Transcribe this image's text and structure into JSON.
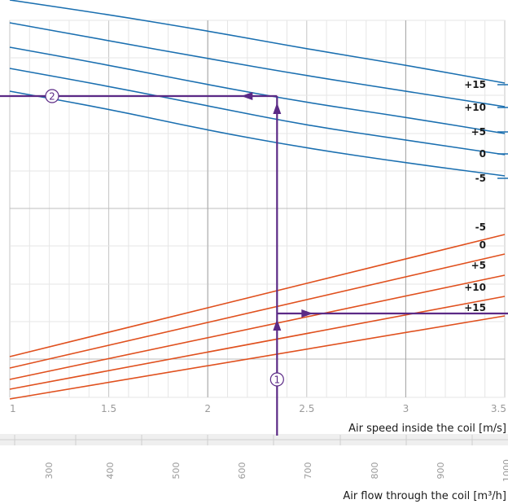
{
  "chart_data": {
    "type": "line",
    "x_axis": {
      "label": "Air speed inside the coil [m/s]",
      "ticks": [
        "1",
        "1.5",
        "2",
        "2.5",
        "3",
        "3.5"
      ],
      "range": [
        1,
        3.5
      ]
    },
    "secondary_x_axis": {
      "label": "Air flow through the coil [m³/h]",
      "ticks": [
        "300",
        "400",
        "500",
        "600",
        "700",
        "800",
        "900",
        "1000"
      ]
    },
    "upper_group": {
      "color": "#1a6fb0",
      "series": [
        {
          "name": "+15",
          "points": [
            [
              1.0,
              0.0
            ],
            [
              1.5,
              18.0
            ],
            [
              2.0,
              38.0
            ],
            [
              2.5,
              60.0
            ],
            [
              3.0,
              80.0
            ],
            [
              3.5,
              102.0
            ]
          ]
        },
        {
          "name": "+10",
          "points": [
            [
              1.0,
              28.0
            ],
            [
              1.5,
              50.0
            ],
            [
              2.0,
              72.0
            ],
            [
              2.5,
              93.0
            ],
            [
              3.0,
              112.0
            ],
            [
              3.5,
              131.0
            ]
          ]
        },
        {
          "name": "+5",
          "points": [
            [
              1.0,
              58.0
            ],
            [
              1.5,
              80.0
            ],
            [
              2.0,
              104.0
            ],
            [
              2.5,
              126.0
            ],
            [
              3.0,
              144.0
            ],
            [
              3.5,
              164.0
            ]
          ]
        },
        {
          "name": "0",
          "points": [
            [
              1.0,
              84.0
            ],
            [
              1.5,
              106.0
            ],
            [
              2.0,
              130.0
            ],
            [
              2.5,
              154.0
            ],
            [
              3.0,
              172.0
            ],
            [
              3.5,
              190.0
            ]
          ]
        },
        {
          "name": "-5",
          "points": [
            [
              1.0,
              112.0
            ],
            [
              1.5,
              134.0
            ],
            [
              2.0,
              160.0
            ],
            [
              2.5,
              182.0
            ],
            [
              3.0,
              200.0
            ],
            [
              3.5,
              216.0
            ]
          ]
        }
      ]
    },
    "lower_group": {
      "color": "#e0501e",
      "series": [
        {
          "name": "-5",
          "points": [
            [
              1.0,
              438.0
            ],
            [
              3.5,
              288.0
            ]
          ]
        },
        {
          "name": "0",
          "points": [
            [
              1.0,
              452.0
            ],
            [
              3.5,
              312.0
            ]
          ]
        },
        {
          "name": "+5",
          "points": [
            [
              1.0,
              466.0
            ],
            [
              3.5,
              338.0
            ]
          ]
        },
        {
          "name": "+10",
          "points": [
            [
              1.0,
              478.0
            ],
            [
              3.5,
              364.0
            ]
          ]
        },
        {
          "name": "+15",
          "points": [
            [
              1.0,
              490.0
            ],
            [
              3.5,
              388.0
            ]
          ]
        }
      ]
    },
    "reading_path": {
      "x_value": 2.35,
      "markers": [
        "①",
        "②"
      ]
    },
    "grid": true
  }
}
